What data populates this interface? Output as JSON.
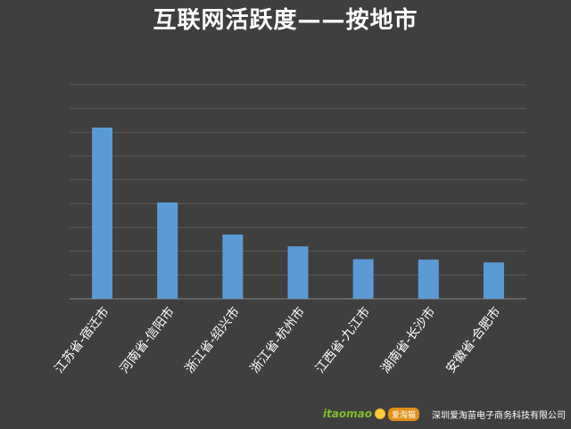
{
  "chart_data": {
    "type": "bar",
    "title": "互联网活跃度——按地市",
    "categories": [
      "江苏省-宿迁市",
      "河南省-信阳市",
      "浙江省-绍兴市",
      "浙江省-杭州市",
      "江西省-九江市",
      "湖南省-长沙市",
      "安徽省-合肥市"
    ],
    "values": [
      80,
      45,
      30,
      24.5,
      18.5,
      18.3,
      17
    ],
    "ylim": [
      0,
      100
    ],
    "grid": true,
    "colors": {
      "bar": "#5b9bd5",
      "background": "#3f3f3f"
    }
  },
  "footer": {
    "logo_text": "itaomao",
    "logo_badge": "爱淘猫",
    "company": "深圳爱淘苗电子商务科技有限公司"
  }
}
